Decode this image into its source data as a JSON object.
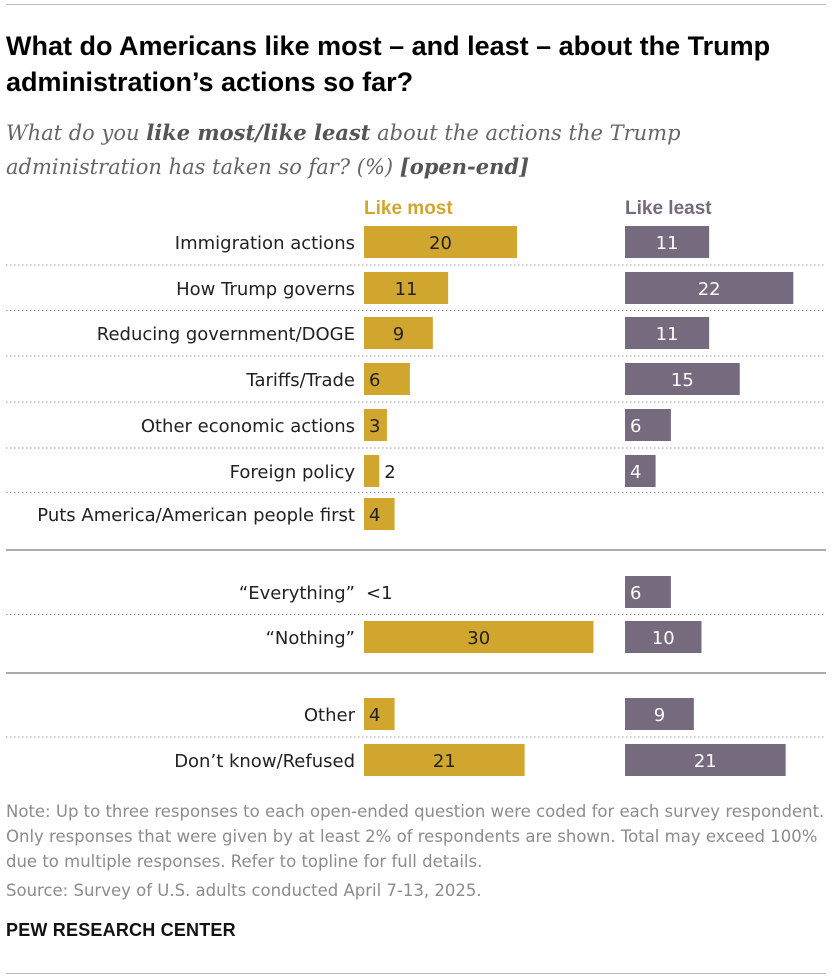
{
  "title": "What do Americans like most – and least – about the Trump administration’s actions so far?",
  "subtitle": {
    "part1": "What do you ",
    "bold1": "like most/like least",
    "part2": " about the actions the Trump administration has taken so far? (%) ",
    "bold2": "[open-end]"
  },
  "chart_data": {
    "type": "bar",
    "series": [
      {
        "name": "Like most",
        "color": "#d1a62f",
        "values": [
          20,
          11,
          9,
          6,
          3,
          2,
          4,
          0.5,
          30,
          4,
          21
        ],
        "labels": [
          "20",
          "11",
          "9",
          "6",
          "3",
          "2",
          "4",
          "<1",
          "30",
          "4",
          "21"
        ]
      },
      {
        "name": "Like least",
        "color": "#756a7e",
        "values": [
          11,
          22,
          11,
          15,
          6,
          4,
          null,
          6,
          10,
          9,
          21
        ],
        "labels": [
          "11",
          "22",
          "11",
          "15",
          "6",
          "4",
          "",
          "6",
          "10",
          "9",
          "21"
        ]
      }
    ],
    "categories": [
      "Immigration actions",
      "How Trump governs",
      "Reducing government/DOGE",
      "Tariffs/Trade",
      "Other economic actions",
      "Foreign policy",
      "Puts America/American people first",
      "“Everything”",
      "“Nothing”",
      "Other",
      "Don’t know/Refused"
    ],
    "groups": [
      [
        0,
        1,
        2,
        3,
        4,
        5,
        6
      ],
      [
        7,
        8
      ],
      [
        9,
        10
      ]
    ]
  },
  "note": "Note: Up to three responses to each open-ended question were coded for each survey respondent. Only responses that were given by at least 2% of respondents are shown. Total may exceed 100% due to multiple responses. Refer to topline for full details.",
  "source": "Source: Survey of U.S. adults conducted April 7-13, 2025.",
  "logo": "PEW RESEARCH CENTER"
}
